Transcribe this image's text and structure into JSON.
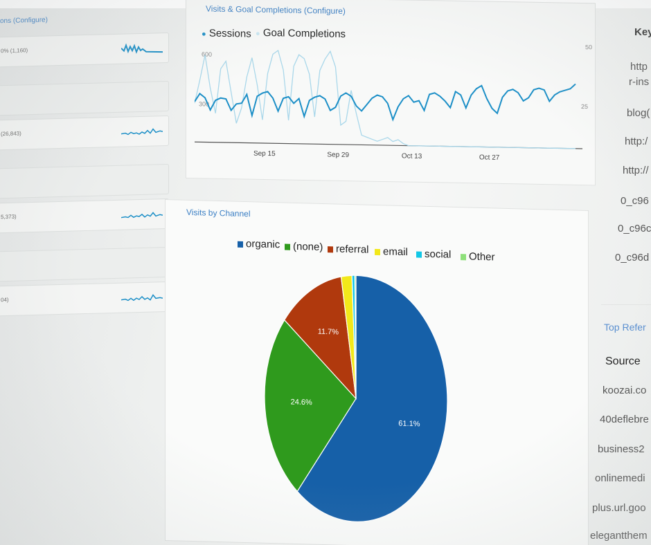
{
  "left_panel": {
    "header": "ons (Configure)",
    "rows": [
      {
        "value": "0% (1,160)"
      },
      {
        "value": "(26,843)"
      },
      {
        "value": "5,373)"
      },
      {
        "value": "04)"
      }
    ]
  },
  "line_chart_panel": {
    "title": "Visits & Goal Completions (Configure)",
    "legend": [
      "Sessions",
      "Goal Completions"
    ],
    "y_left_ticks": [
      "600",
      "300"
    ],
    "y_right_ticks": [
      "50",
      "25"
    ],
    "x_ticks": [
      "Sep 15",
      "Sep 29",
      "Oct 13",
      "Oct 27"
    ],
    "colors": {
      "sessions": "#1c8fc7",
      "goal_completions": "#a9d7ea"
    }
  },
  "pie_panel": {
    "title": "Visits by Channel",
    "legend": [
      {
        "label": "organic",
        "color": "#1660a8"
      },
      {
        "label": "(none)",
        "color": "#2f9a1d"
      },
      {
        "label": "referral",
        "color": "#b0390d"
      },
      {
        "label": "email",
        "color": "#f2e81a"
      },
      {
        "label": "social",
        "color": "#12c7e6"
      },
      {
        "label": "Other",
        "color": "#8ee07a"
      }
    ]
  },
  "chart_data": [
    {
      "type": "line",
      "title": "Visits & Goal Completions",
      "x_ticks": [
        "Sep 15",
        "Sep 29",
        "Oct 13",
        "Oct 27"
      ],
      "ylim": [
        0,
        600
      ],
      "y2lim": [
        0,
        50
      ],
      "series": [
        {
          "name": "Sessions",
          "axis": "left",
          "values": [
            250,
            300,
            275,
            200,
            260,
            275,
            270,
            200,
            240,
            245,
            300,
            170,
            290,
            310,
            320,
            280,
            200,
            280,
            290,
            250,
            280,
            170,
            270,
            290,
            300,
            280,
            210,
            230,
            300,
            320,
            300,
            240,
            210,
            250,
            290,
            310,
            300,
            260,
            160,
            240,
            290,
            310,
            270,
            280,
            220,
            320,
            330,
            310,
            280,
            240,
            340,
            320,
            240,
            320,
            360,
            380,
            300,
            240,
            210,
            310,
            350,
            360,
            340,
            290,
            310,
            360,
            370,
            360,
            290,
            330,
            350,
            360,
            370,
            400
          ]
        },
        {
          "name": "Goal Completions",
          "axis": "right",
          "values": [
            20,
            32,
            45,
            28,
            15,
            38,
            42,
            26,
            10,
            18,
            34,
            44,
            30,
            12,
            36,
            46,
            48,
            38,
            12,
            40,
            46,
            44,
            36,
            14,
            38,
            44,
            48,
            40,
            10,
            12,
            28,
            16,
            5,
            4,
            3,
            2,
            3,
            4,
            2,
            3,
            1,
            0,
            0,
            0,
            0,
            0,
            0,
            0,
            0,
            0,
            0,
            0,
            0,
            0,
            0,
            0,
            0,
            0,
            0,
            0,
            0,
            0,
            0,
            0,
            0,
            0,
            0,
            0,
            0,
            0,
            0,
            0,
            0,
            0
          ]
        }
      ]
    },
    {
      "type": "pie",
      "title": "Visits by Channel",
      "categories": [
        "organic",
        "(none)",
        "referral",
        "email",
        "social",
        "Other"
      ],
      "values": [
        61.1,
        24.6,
        11.7,
        1.9,
        0.5,
        0.2
      ],
      "labels": [
        "61.1%",
        "24.6%",
        "11.7%"
      ],
      "legend_position": "top"
    }
  ],
  "right_panel": {
    "keyword_header": "Key",
    "keyword_items": [
      "http",
      "r-ins",
      "blog(",
      "http:/",
      "http://",
      "0_c96",
      "0_c96c",
      "0_c96d"
    ],
    "referral_title": "Top Refer",
    "source_header": "Source",
    "sources": [
      "koozai.co",
      "40deflebre",
      "business2",
      "onlinemedi",
      "plus.url.goo",
      "elegantthem"
    ]
  }
}
